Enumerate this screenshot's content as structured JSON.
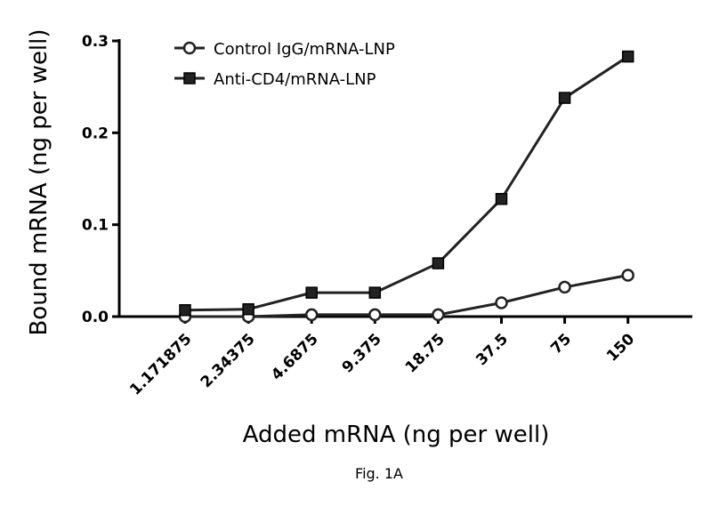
{
  "chart_data": {
    "type": "line",
    "xlabel": "Added mRNA (ng per well)",
    "ylabel": "Bound mRNA (ng per well)",
    "categories": [
      "1.171875",
      "2.34375",
      "4.6875",
      "9.375",
      "18.75",
      "37.5",
      "75",
      "150"
    ],
    "yticks": [
      "0.0",
      "0.1",
      "0.2",
      "0.3"
    ],
    "ylim": [
      0,
      0.3
    ],
    "grid": false,
    "legend_position": "top-left",
    "series": [
      {
        "name": "Control IgG/mRNA-LNP",
        "marker": "open-circle",
        "values": [
          0.0,
          0.0,
          0.002,
          0.002,
          0.002,
          0.015,
          0.032,
          0.045
        ]
      },
      {
        "name": "Anti-CD4/mRNA-LNP",
        "marker": "filled-square",
        "values": [
          0.007,
          0.008,
          0.026,
          0.026,
          0.058,
          0.128,
          0.238,
          0.283
        ]
      }
    ]
  },
  "caption": "Fig. 1A"
}
